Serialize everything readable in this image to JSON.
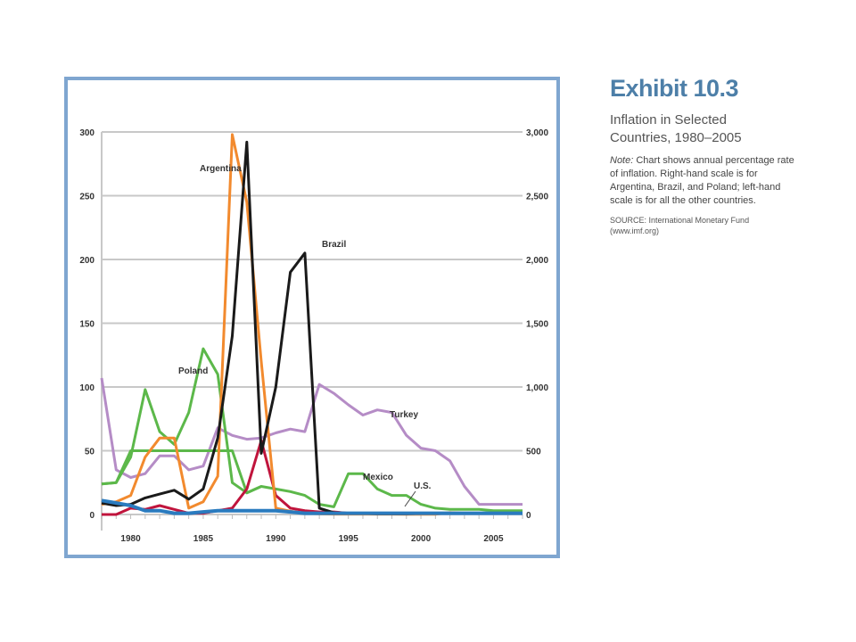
{
  "exhibit": {
    "title": "Exhibit 10.3",
    "subtitle": "Inflation in Selected Countries, 1980–2005",
    "note_label": "Note:",
    "note_text": " Chart shows annual percentage rate of inflation. Right-hand scale is for Argentina, Brazil, and Poland; left-hand scale is for all the other countries.",
    "source": "SOURCE: International Monetary Fund (www.imf.org)"
  },
  "chart_data": {
    "type": "line",
    "title": "",
    "xlabel": "",
    "ylabel": "",
    "xlim": [
      1978,
      2007
    ],
    "x_ticks": [
      1980,
      1985,
      1990,
      1995,
      2000,
      2005
    ],
    "ylim_left": [
      0,
      300
    ],
    "ylim_right": [
      0,
      3000
    ],
    "y_ticks_left": [
      "0",
      "50",
      "100",
      "150",
      "200",
      "250",
      "300"
    ],
    "y_ticks_right": [
      "0",
      "500",
      "1,000",
      "1,500",
      "2,000",
      "2,500",
      "3,000"
    ],
    "grid": "horizontal",
    "series": [
      {
        "name": "Turkey",
        "axis": "left",
        "color": "#b58cc6",
        "x": [
          1978,
          1979,
          1980,
          1981,
          1982,
          1983,
          1984,
          1985,
          1986,
          1987,
          1988,
          1989,
          1990,
          1991,
          1992,
          1993,
          1994,
          1995,
          1996,
          1997,
          1998,
          1999,
          2000,
          2001,
          2002,
          2003,
          2004,
          2005,
          2006,
          2007
        ],
        "y": [
          107,
          35,
          29,
          32,
          46,
          46,
          35,
          38,
          68,
          62,
          59,
          60,
          64,
          67,
          65,
          102,
          95,
          86,
          78,
          82,
          80,
          62,
          52,
          50,
          42,
          22,
          8,
          8,
          8,
          8
        ]
      },
      {
        "name": "Mexico",
        "axis": "left",
        "color": "#5cb84a",
        "x": [
          1978,
          1979,
          1980,
          1981,
          1982,
          1983,
          1984,
          1985,
          1986,
          1987,
          1988,
          1989,
          1990,
          1991,
          1992,
          1993,
          1994,
          1995,
          1996,
          1997,
          1998,
          1999,
          2000,
          2001,
          2002,
          2003,
          2004,
          2005,
          2006,
          2007
        ],
        "y": [
          24,
          25,
          50,
          50,
          50,
          50,
          50,
          50,
          50,
          50,
          17,
          22,
          20,
          18,
          15,
          8,
          6,
          32,
          32,
          20,
          15,
          15,
          8,
          5,
          4,
          4,
          4,
          3,
          3,
          3
        ]
      },
      {
        "name": "Poland",
        "axis": "right",
        "color": "#5cb84a",
        "x": [
          1978,
          1979,
          1980,
          1981,
          1982,
          1983,
          1984,
          1985,
          1986,
          1987,
          1988,
          1989
        ],
        "y": [
          240,
          250,
          450,
          980,
          650,
          550,
          800,
          1300,
          1100,
          250,
          170,
          220
        ]
      },
      {
        "name": "",
        "axis": "left",
        "color": "#c0143c",
        "x": [
          1978,
          1979,
          1980,
          1981,
          1982,
          1983,
          1984,
          1985,
          1986,
          1987,
          1988,
          1989,
          1990,
          1991,
          1992,
          1993,
          1994,
          1995,
          1996,
          1997,
          1998,
          1999,
          2000,
          2001,
          2002,
          2003,
          2004,
          2005,
          2006,
          2007
        ],
        "y": [
          0,
          0,
          5,
          4,
          7,
          4,
          1,
          1,
          3,
          5,
          20,
          58,
          15,
          5,
          3,
          2,
          2,
          1,
          1,
          1,
          1,
          1,
          1,
          1,
          1,
          1,
          1,
          1,
          1,
          1
        ]
      },
      {
        "name": "Argentina",
        "axis": "right",
        "color": "#f28a2e",
        "x": [
          1978,
          1979,
          1980,
          1981,
          1982,
          1983,
          1984,
          1985,
          1986,
          1987,
          1988,
          1989,
          1990,
          1991,
          1992,
          1993,
          1994,
          1995,
          1996,
          1997,
          1998,
          1999,
          2000,
          2001,
          2002,
          2003,
          2004,
          2005,
          2006,
          2007
        ],
        "y": [
          80,
          100,
          150,
          450,
          600,
          600,
          50,
          100,
          300,
          2980,
          2450,
          1200,
          50,
          25,
          10,
          5,
          3,
          3,
          3,
          3,
          3,
          2,
          2,
          2,
          15,
          10,
          10,
          10,
          10,
          10
        ]
      },
      {
        "name": "Brazil",
        "axis": "right",
        "color": "#1a1a1a",
        "x": [
          1978,
          1979,
          1980,
          1981,
          1982,
          1983,
          1984,
          1985,
          1986,
          1987,
          1988,
          1989,
          1990,
          1991,
          1992,
          1993,
          1994,
          1995,
          1996,
          1997,
          1998,
          1999,
          2000,
          2001,
          2002,
          2003,
          2004,
          2005,
          2006,
          2007
        ],
        "y": [
          90,
          70,
          80,
          130,
          160,
          190,
          120,
          200,
          600,
          1400,
          2920,
          480,
          1000,
          1900,
          2050,
          50,
          15,
          10,
          8,
          5,
          5,
          5,
          8,
          10,
          10,
          10,
          10,
          10,
          10,
          10
        ]
      },
      {
        "name": "U.S.",
        "axis": "left",
        "color": "#2a7bbf",
        "x": [
          1978,
          1979,
          1980,
          1981,
          1982,
          1983,
          1984,
          1985,
          1986,
          1987,
          1988,
          1989,
          1990,
          1991,
          1992,
          1993,
          1994,
          1995,
          1996,
          1997,
          1998,
          1999,
          2000,
          2001,
          2002,
          2003,
          2004,
          2005,
          2006,
          2007
        ],
        "y": [
          11,
          9,
          7,
          3,
          3,
          1,
          1,
          2,
          3,
          3,
          3,
          3,
          3,
          2,
          1,
          1,
          1,
          1,
          1,
          1,
          1,
          1,
          1,
          1,
          1,
          1,
          1,
          1,
          1,
          1
        ]
      }
    ],
    "annotations": [
      {
        "text": "Argentina",
        "series": "Argentina"
      },
      {
        "text": "Brazil",
        "series": "Brazil"
      },
      {
        "text": "Poland",
        "series": "Poland"
      },
      {
        "text": "Turkey",
        "series": "Turkey"
      },
      {
        "text": "Mexico",
        "series": "Mexico"
      },
      {
        "text": "U.S.",
        "series": "U.S."
      }
    ]
  }
}
